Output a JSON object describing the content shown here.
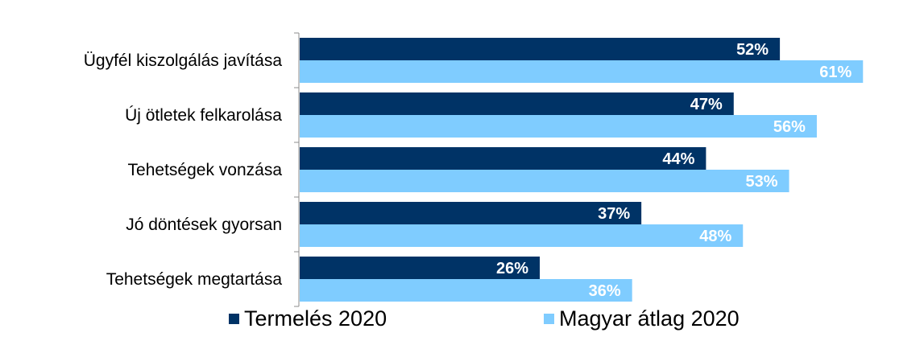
{
  "chart_data": {
    "type": "bar",
    "orientation": "horizontal",
    "categories": [
      "Ügyfél kiszolgálás javítása",
      "Új ötletek felkarolása",
      "Tehetségek vonzása",
      "Jó döntések gyorsan",
      "Tehetségek megtartása"
    ],
    "series": [
      {
        "name": "Termelés 2020",
        "values": [
          52,
          47,
          44,
          37,
          26
        ],
        "labels": [
          "52%",
          "47%",
          "44%",
          "37%",
          "26%"
        ],
        "color": "#003366"
      },
      {
        "name": "Magyar átlag 2020",
        "values": [
          61,
          56,
          53,
          48,
          36
        ],
        "labels": [
          "61%",
          "56%",
          "53%",
          "48%",
          "36%"
        ],
        "color": "#7FCCFF"
      }
    ],
    "xlim": [
      0,
      82
    ],
    "grid": false,
    "data_labels": "inside-end",
    "legend_position": "bottom"
  },
  "legend": {
    "series1_label": "Termelés 2020",
    "series2_label": "Magyar átlag 2020"
  }
}
